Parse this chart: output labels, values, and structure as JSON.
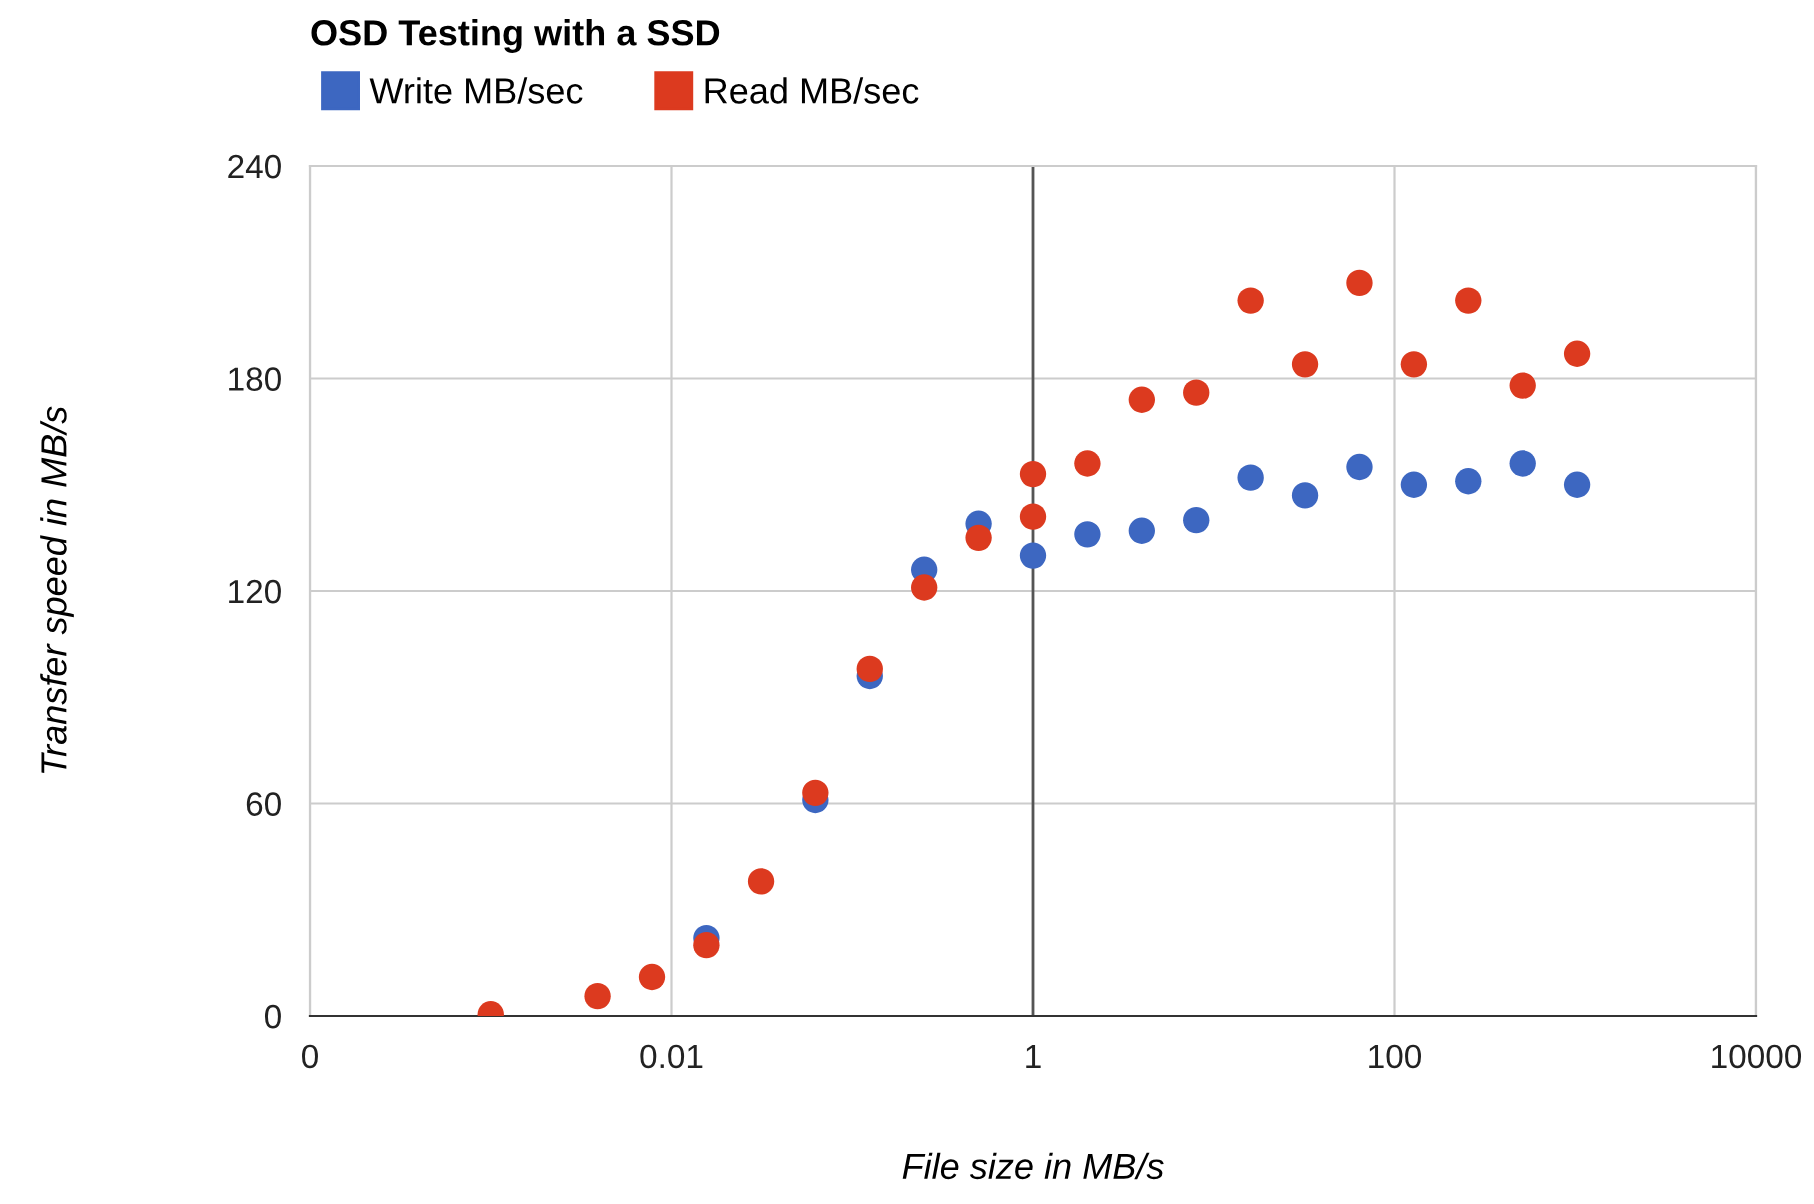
{
  "chart_data": {
    "type": "scatter",
    "title": "OSD Testing with a SSD",
    "xlabel": "File size in MB/s",
    "ylabel": "Transfer speed in MB/s",
    "log": "x",
    "xlim": [
      0.0001,
      10000
    ],
    "xticks": [
      {
        "value": 0.0001,
        "label": "0"
      },
      0.01,
      1,
      100,
      10000
    ],
    "ylim": [
      0,
      240
    ],
    "yticks": [
      0,
      60,
      120,
      180,
      240
    ],
    "grid": true,
    "legend": "top left",
    "marker": "circle",
    "ref_lines": [
      {
        "axis": "x",
        "value": 1,
        "label": null,
        "color": "#555555"
      }
    ],
    "series": [
      {
        "name": "Write MB/sec",
        "color": "#3d67c1",
        "x": [
          0.0156,
          0.0625,
          0.125,
          0.25,
          0.5,
          1,
          2,
          4,
          8,
          16,
          32,
          64,
          128,
          256,
          512,
          1024
        ],
        "values": [
          22,
          61,
          96,
          126,
          139,
          130,
          136,
          137,
          140,
          152,
          147,
          155,
          150,
          151,
          156,
          150
        ]
      },
      {
        "name": "Read MB/sec",
        "color": "#dc3a1f",
        "x": [
          0.001,
          0.0039,
          0.0078,
          0.0156,
          0.0313,
          0.0625,
          0.125,
          0.25,
          0.5,
          1,
          1,
          2,
          4,
          8,
          16,
          32,
          64,
          128,
          256,
          512,
          1024
        ],
        "values": [
          0.5,
          5.6,
          11,
          20,
          38,
          63,
          98,
          121,
          135,
          141,
          153,
          156,
          174,
          176,
          202,
          184,
          207,
          184,
          202,
          178,
          187
        ]
      }
    ]
  }
}
